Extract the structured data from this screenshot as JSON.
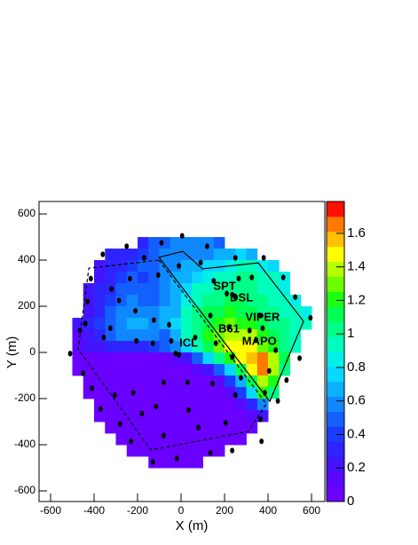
{
  "chart_data": {
    "type": "heatmap",
    "x_label": "X (m)",
    "y_label": "Y (m)",
    "xlim": [
      -653,
      661
    ],
    "ylim": [
      -646,
      654
    ],
    "xticks": [
      -600,
      -400,
      -200,
      0,
      200,
      400,
      600
    ],
    "yticks": [
      -600,
      -400,
      -200,
      0,
      200,
      400,
      600
    ],
    "zlim": [
      0,
      1.79
    ],
    "zticks": [
      0,
      0.2,
      0.4,
      0.6,
      0.8,
      1,
      1.2,
      1.4,
      1.6
    ],
    "palette": [
      "#6a00ff",
      "#5a08ff",
      "#4414ff",
      "#2e24ff",
      "#1a3cff",
      "#1460ff",
      "#0f88ff",
      "#0cb0ff",
      "#08d8ff",
      "#00f0e8",
      "#00ffbc",
      "#00ff88",
      "#00ff50",
      "#1cff10",
      "#6cff00",
      "#b4ff00",
      "#ffff00",
      "#ffc000",
      "#ff7800",
      "#ff1000"
    ],
    "xbins": [
      -500,
      -450,
      -400,
      -350,
      -300,
      -250,
      -200,
      -150,
      -100,
      -50,
      0,
      50,
      100,
      150,
      200,
      250,
      300,
      350,
      400,
      450,
      500,
      550,
      600
    ],
    "ybins": [
      500,
      450,
      400,
      350,
      300,
      250,
      200,
      150,
      100,
      50,
      0,
      -50,
      -100,
      -150,
      -200,
      -250,
      -300,
      -350,
      -400,
      -450,
      -500
    ],
    "z": [
      [
        null,
        null,
        null,
        null,
        null,
        null,
        0.35,
        0.45,
        0.5,
        0.55,
        0.6,
        0.6,
        0.55,
        0.5,
        null,
        null,
        null,
        null,
        null,
        null,
        null,
        null
      ],
      [
        null,
        null,
        null,
        0.3,
        0.3,
        0.35,
        0.4,
        0.5,
        0.55,
        0.6,
        0.6,
        0.6,
        0.6,
        0.65,
        0.7,
        0.75,
        0.7,
        null,
        null,
        null,
        null,
        null
      ],
      [
        null,
        null,
        0.25,
        0.3,
        0.35,
        0.4,
        0.45,
        0.5,
        0.55,
        0.6,
        0.65,
        0.7,
        0.75,
        0.8,
        0.85,
        0.9,
        0.9,
        0.85,
        0.8,
        null,
        null,
        null
      ],
      [
        null,
        null,
        0.25,
        0.3,
        0.4,
        0.45,
        0.4,
        0.5,
        0.55,
        0.65,
        0.7,
        0.8,
        0.85,
        0.9,
        0.95,
        1.0,
        1.0,
        0.95,
        0.9,
        0.85,
        null,
        null
      ],
      [
        null,
        0.2,
        0.3,
        0.35,
        0.45,
        0.5,
        0.45,
        0.5,
        0.6,
        0.7,
        0.8,
        0.9,
        0.95,
        1.0,
        1.05,
        1.05,
        1.0,
        0.95,
        0.9,
        0.85,
        null,
        null
      ],
      [
        null,
        0.2,
        0.3,
        0.4,
        0.5,
        0.55,
        0.5,
        0.45,
        0.6,
        0.7,
        0.85,
        0.9,
        1.0,
        1.05,
        1.1,
        1.1,
        1.0,
        1.0,
        0.95,
        0.9,
        0.85,
        null
      ],
      [
        null,
        0.25,
        0.35,
        0.45,
        0.55,
        0.6,
        0.6,
        0.55,
        0.65,
        0.7,
        0.9,
        1.0,
        1.1,
        1.15,
        1.2,
        1.15,
        1.1,
        1.05,
        1.0,
        0.95,
        0.9,
        0.85
      ],
      [
        0.2,
        0.3,
        0.4,
        0.5,
        0.6,
        0.65,
        0.65,
        0.6,
        0.7,
        0.8,
        0.95,
        1.05,
        1.15,
        1.25,
        1.3,
        1.25,
        1.2,
        1.1,
        1.05,
        1.0,
        0.95,
        0.9
      ],
      [
        0.15,
        0.25,
        0.35,
        0.45,
        0.55,
        0.6,
        0.6,
        0.55,
        0.5,
        0.7,
        0.9,
        1.0,
        1.2,
        1.3,
        1.4,
        1.4,
        1.35,
        1.2,
        1.1,
        1.0,
        0.95,
        null
      ],
      [
        0.1,
        0.2,
        0.25,
        0.3,
        0.3,
        0.3,
        0.35,
        0.4,
        0.45,
        0.55,
        0.8,
        0.95,
        1.1,
        1.3,
        1.45,
        1.5,
        1.45,
        1.3,
        1.2,
        1.0,
        0.9,
        null
      ],
      [
        0.05,
        0.05,
        0.05,
        0.05,
        0.05,
        0.05,
        0.05,
        0.05,
        0.05,
        0.1,
        0.2,
        0.5,
        0.8,
        1.0,
        1.25,
        1.45,
        1.6,
        1.7,
        1.4,
        1.1,
        null,
        null
      ],
      [
        0.05,
        0.05,
        0.05,
        0.05,
        0.05,
        0.05,
        0.05,
        0.05,
        0.05,
        0.05,
        0.05,
        0.1,
        0.25,
        0.5,
        0.8,
        1.1,
        1.45,
        1.65,
        1.35,
        1.0,
        null,
        null
      ],
      [
        null,
        0.05,
        0.05,
        0.05,
        0.05,
        0.05,
        0.05,
        0.05,
        0.05,
        0.05,
        0.05,
        0.05,
        0.05,
        0.15,
        0.4,
        0.7,
        1.1,
        1.4,
        1.2,
        null,
        null,
        null
      ],
      [
        null,
        0.05,
        0.05,
        0.05,
        0.05,
        0.05,
        0.05,
        0.05,
        0.05,
        0.05,
        0.05,
        0.05,
        0.05,
        0.05,
        0.15,
        0.4,
        0.8,
        1.2,
        1.0,
        null,
        null,
        null
      ],
      [
        null,
        null,
        0.05,
        0.05,
        0.05,
        0.05,
        0.05,
        0.05,
        0.05,
        0.05,
        0.05,
        0.05,
        0.05,
        0.05,
        0.05,
        0.1,
        0.3,
        0.6,
        null,
        null,
        null,
        null
      ],
      [
        null,
        null,
        0.05,
        0.05,
        0.05,
        0.05,
        0.05,
        0.05,
        0.05,
        0.05,
        0.05,
        0.05,
        0.05,
        0.05,
        0.05,
        0.05,
        0.1,
        0.2,
        null,
        null,
        null,
        null
      ],
      [
        null,
        null,
        null,
        0.05,
        0.05,
        0.05,
        0.05,
        0.05,
        0.05,
        0.05,
        0.05,
        0.05,
        0.05,
        0.05,
        0.05,
        0.05,
        0.05,
        null,
        null,
        null,
        null,
        null
      ],
      [
        null,
        null,
        null,
        null,
        0.05,
        0.05,
        0.05,
        0.05,
        0.05,
        0.05,
        0.05,
        0.05,
        0.05,
        0.05,
        0.05,
        0.05,
        null,
        null,
        null,
        null,
        null,
        null
      ],
      [
        null,
        null,
        null,
        null,
        null,
        0.05,
        0.05,
        0.05,
        0.05,
        0.05,
        0.05,
        0.05,
        0.05,
        0.05,
        null,
        null,
        null,
        null,
        null,
        null,
        null,
        null
      ],
      [
        null,
        null,
        null,
        null,
        null,
        null,
        null,
        0.05,
        0.05,
        0.05,
        0.05,
        0.05,
        null,
        null,
        null,
        null,
        null,
        null,
        null,
        null,
        null,
        null
      ]
    ],
    "stations": {
      "color": "#000000",
      "x": [
        5,
        -90,
        -250,
        -360,
        -415,
        -430,
        -440,
        -465,
        -510,
        -450,
        -410,
        -370,
        -280,
        -230,
        -130,
        -20,
        135,
        235,
        370,
        365,
        445,
        485,
        545,
        595,
        525,
        470,
        380,
        250,
        90,
        120,
        -170,
        -10,
        -105,
        -235,
        -320,
        -285,
        -210,
        -125,
        -55,
        -325,
        -205,
        -130,
        -45,
        -25,
        -10,
        65,
        150,
        265,
        325,
        210,
        235,
        250,
        135,
        220,
        315,
        365,
        375,
        345,
        435,
        160,
        235,
        275,
        405,
        385,
        250,
        145,
        30,
        -80,
        -220,
        -115,
        35,
        205,
        80,
        -80,
        -180,
        -305,
        -355
      ],
      "y": [
        505,
        475,
        460,
        425,
        320,
        220,
        125,
        95,
        -5,
        -90,
        -155,
        -245,
        -310,
        -385,
        -475,
        -460,
        -435,
        -425,
        -385,
        -290,
        -210,
        -120,
        -25,
        150,
        240,
        325,
        410,
        410,
        390,
        460,
        410,
        375,
        335,
        320,
        275,
        225,
        180,
        140,
        120,
        105,
        50,
        40,
        50,
        -5,
        -10,
        65,
        310,
        320,
        325,
        255,
        250,
        240,
        160,
        110,
        95,
        160,
        105,
        55,
        10,
        40,
        -20,
        -110,
        -80,
        -175,
        -185,
        -135,
        -130,
        -130,
        -175,
        -235,
        -250,
        -305,
        -325,
        -360,
        -265,
        -185,
        65
      ]
    },
    "annotations": [
      "SPT",
      "DSL",
      "VIPER",
      "B61",
      "MAPO",
      "ICL"
    ]
  }
}
